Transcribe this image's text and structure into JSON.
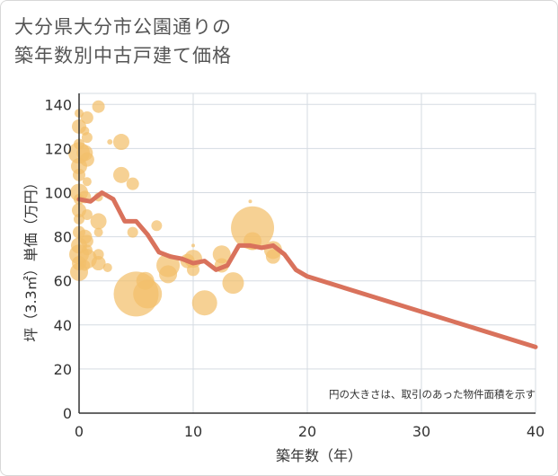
{
  "title_line1": "大分県大分市公園通りの",
  "title_line2": "築年数別中古戸建て価格",
  "chart_data": {
    "type": "scatter",
    "title": "大分県大分市公園通りの築年数別中古戸建て価格",
    "xlabel": "築年数（年）",
    "ylabel": "坪（3.3㎡）単価（万円）",
    "xlim": [
      0,
      40
    ],
    "ylim": [
      0,
      145
    ],
    "xticks": [
      0,
      10,
      20,
      30,
      40
    ],
    "yticks": [
      0,
      20,
      40,
      60,
      80,
      100,
      120,
      140
    ],
    "grid": true,
    "note": "円の大きさは、取引のあった物件面積を示す",
    "colors": {
      "bubble": "#f2bf6b",
      "line": "#d9725c",
      "grid": "#d5dbe2",
      "axis": "#333333"
    },
    "bubbles": [
      {
        "x": 0,
        "y": 136,
        "s": 5
      },
      {
        "x": 0,
        "y": 130,
        "s": 8
      },
      {
        "x": 0,
        "y": 122,
        "s": 6
      },
      {
        "x": 0,
        "y": 118,
        "s": 12
      },
      {
        "x": 0,
        "y": 112,
        "s": 9
      },
      {
        "x": 0,
        "y": 108,
        "s": 7
      },
      {
        "x": 0,
        "y": 100,
        "s": 10
      },
      {
        "x": 0,
        "y": 97,
        "s": 6
      },
      {
        "x": 0,
        "y": 92,
        "s": 8
      },
      {
        "x": 0,
        "y": 88,
        "s": 6
      },
      {
        "x": 0,
        "y": 82,
        "s": 7
      },
      {
        "x": 0,
        "y": 76,
        "s": 9
      },
      {
        "x": 0,
        "y": 72,
        "s": 11
      },
      {
        "x": 0,
        "y": 68,
        "s": 8
      },
      {
        "x": 0,
        "y": 64,
        "s": 10
      },
      {
        "x": 0.5,
        "y": 128,
        "s": 5
      },
      {
        "x": 0.5,
        "y": 118,
        "s": 9
      },
      {
        "x": 0.5,
        "y": 98,
        "s": 7
      },
      {
        "x": 0.5,
        "y": 80,
        "s": 8
      },
      {
        "x": 0.5,
        "y": 67,
        "s": 6
      },
      {
        "x": 0.7,
        "y": 134,
        "s": 7
      },
      {
        "x": 0.7,
        "y": 125,
        "s": 6
      },
      {
        "x": 0.7,
        "y": 115,
        "s": 8
      },
      {
        "x": 0.7,
        "y": 105,
        "s": 5
      },
      {
        "x": 0.7,
        "y": 90,
        "s": 6
      },
      {
        "x": 0.7,
        "y": 78,
        "s": 7
      },
      {
        "x": 0.7,
        "y": 74,
        "s": 6
      },
      {
        "x": 0.7,
        "y": 70,
        "s": 11
      },
      {
        "x": 1.7,
        "y": 139,
        "s": 7
      },
      {
        "x": 1.7,
        "y": 87,
        "s": 9
      },
      {
        "x": 1.7,
        "y": 98,
        "s": 5
      },
      {
        "x": 1.7,
        "y": 82,
        "s": 5
      },
      {
        "x": 1.7,
        "y": 72,
        "s": 6
      },
      {
        "x": 1.7,
        "y": 68,
        "s": 8
      },
      {
        "x": 2.5,
        "y": 66,
        "s": 5
      },
      {
        "x": 2.7,
        "y": 123,
        "s": 3
      },
      {
        "x": 3.7,
        "y": 123,
        "s": 9
      },
      {
        "x": 3.7,
        "y": 108,
        "s": 9
      },
      {
        "x": 4.7,
        "y": 104,
        "s": 7
      },
      {
        "x": 4.7,
        "y": 82,
        "s": 6
      },
      {
        "x": 5,
        "y": 54,
        "s": 25
      },
      {
        "x": 5.8,
        "y": 60,
        "s": 10
      },
      {
        "x": 6,
        "y": 54,
        "s": 16
      },
      {
        "x": 6.8,
        "y": 85,
        "s": 6
      },
      {
        "x": 7.8,
        "y": 67,
        "s": 13
      },
      {
        "x": 7.8,
        "y": 63,
        "s": 10
      },
      {
        "x": 9.5,
        "y": 69,
        "s": 8
      },
      {
        "x": 10,
        "y": 76,
        "s": 2
      },
      {
        "x": 10,
        "y": 70,
        "s": 10
      },
      {
        "x": 10,
        "y": 65,
        "s": 7
      },
      {
        "x": 11,
        "y": 50,
        "s": 14
      },
      {
        "x": 12.5,
        "y": 72,
        "s": 10
      },
      {
        "x": 12.5,
        "y": 67,
        "s": 8
      },
      {
        "x": 13.5,
        "y": 59,
        "s": 12
      },
      {
        "x": 15,
        "y": 96,
        "s": 2
      },
      {
        "x": 15.2,
        "y": 84,
        "s": 24
      },
      {
        "x": 15.2,
        "y": 78,
        "s": 10
      },
      {
        "x": 17,
        "y": 74,
        "s": 10
      },
      {
        "x": 17,
        "y": 71,
        "s": 8
      }
    ],
    "line": {
      "x": [
        0,
        1,
        2,
        3,
        4,
        5,
        6,
        7,
        8,
        9,
        10,
        11,
        12,
        13,
        14,
        15,
        16,
        17,
        18,
        19,
        20,
        40
      ],
      "y": [
        97,
        96,
        100,
        97,
        87,
        87,
        81,
        73,
        71,
        70,
        68,
        69,
        65,
        67,
        76,
        76,
        75,
        76,
        72,
        65,
        62,
        30
      ]
    }
  }
}
